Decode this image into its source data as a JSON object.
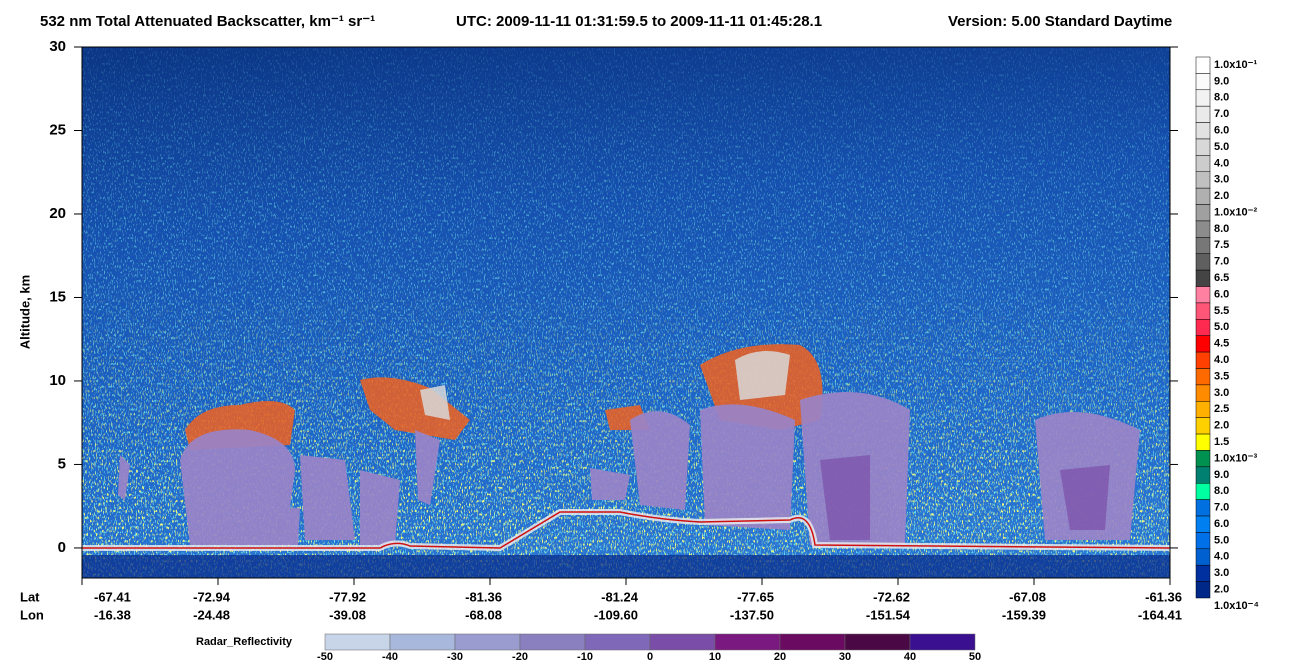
{
  "chart_data": {
    "type": "heatmap",
    "title": "532 nm Total Attenuated Backscatter, km⁻¹ sr⁻¹",
    "utc": "UTC:  2009-11-11 01:31:59.5  to  2009-11-11 01:45:28.1",
    "version": "Version: 5.00  Standard  Daytime",
    "y_label": "Altitude, km",
    "ylim": [
      -1.8,
      30
    ],
    "yticks": [
      0,
      5,
      10,
      15,
      20,
      25,
      30
    ],
    "x_rows": [
      {
        "name": "Lat",
        "categories": [
          "-67.41",
          "-72.94",
          "-77.92",
          "-81.36",
          "-81.24",
          "-77.65",
          "-72.62",
          "-67.08",
          "-61.36"
        ]
      },
      {
        "name": "Lon",
        "categories": [
          "-16.38",
          "-24.48",
          "-39.08",
          "-68.08",
          "-109.60",
          "-137.50",
          "-151.54",
          "-159.39",
          "-164.41"
        ]
      }
    ],
    "colorbar": {
      "labels": [
        "1.0x10⁻¹",
        "9.0",
        "8.0",
        "7.0",
        "6.0",
        "5.0",
        "4.0",
        "3.0",
        "2.0",
        "1.0x10⁻²",
        "8.0",
        "7.5",
        "7.0",
        "6.5",
        "6.0",
        "5.5",
        "5.0",
        "4.5",
        "4.0",
        "3.5",
        "3.0",
        "2.5",
        "2.0",
        "1.5",
        "1.0x10⁻³",
        "9.0",
        "8.0",
        "7.0",
        "6.0",
        "5.0",
        "4.0",
        "3.0",
        "2.0",
        "1.0x10⁻⁴"
      ],
      "colors": [
        "#ffffff",
        "#fafafa",
        "#f2f2f2",
        "#eaeaea",
        "#e2e2e2",
        "#d8d8d8",
        "#cccccc",
        "#c0c0c0",
        "#b0b0b0",
        "#a0a0a0",
        "#8c8c8c",
        "#777777",
        "#5f5f5f",
        "#444444",
        "#ff80a0",
        "#ff5577",
        "#ff2a50",
        "#ff0000",
        "#ff4000",
        "#ff6a00",
        "#ff8c00",
        "#ffb000",
        "#ffd000",
        "#ffff00",
        "#009050",
        "#008070",
        "#00ffa0",
        "#0070e0",
        "#0080f0",
        "#0070e8",
        "#0060d0",
        "#0030a0",
        "#002888"
      ]
    },
    "radar": {
      "label": "Radar_Reflectivity",
      "ticks": [
        -50,
        -40,
        -30,
        -20,
        -10,
        0,
        10,
        20,
        30,
        40,
        50
      ],
      "colors": [
        "#c8d4e8",
        "#a8b8dc",
        "#9a9cd0",
        "#8a80c0",
        "#8068b8",
        "#7a4ea8",
        "#7a1a80",
        "#6a0a60",
        "#4a0845",
        "#3a1090"
      ]
    }
  }
}
